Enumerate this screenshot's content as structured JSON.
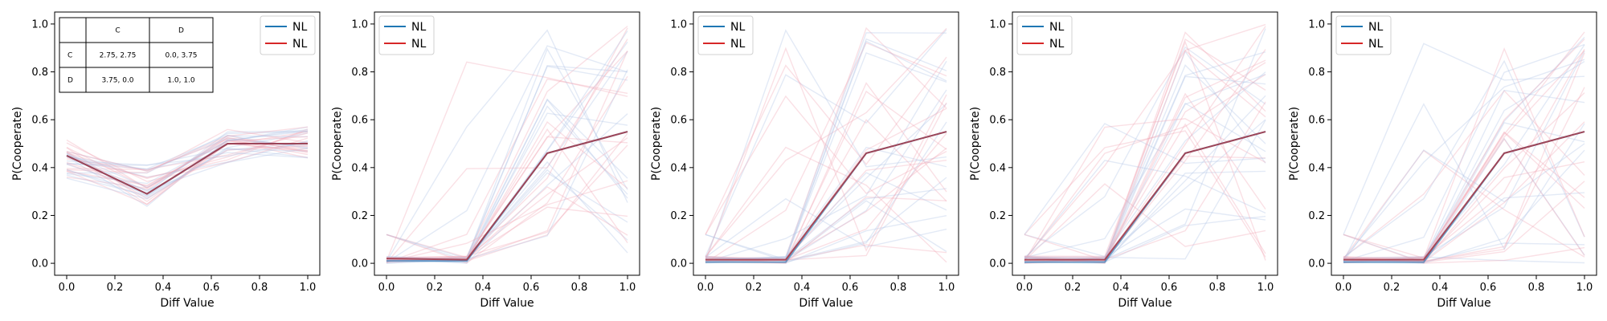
{
  "colors": {
    "series_a": "#1f77b4",
    "series_b": "#d62728",
    "overlap": "#a23b4b",
    "bg_a": "#aec3e6",
    "bg_b": "#f2a7b4"
  },
  "chart_data": [
    {
      "type": "line",
      "xlabel": "Diff Value",
      "ylabel": "P(Cooperate)",
      "xlim": [
        -0.05,
        1.05
      ],
      "ylim": [
        -0.05,
        1.05
      ],
      "xticks": [
        "0.0",
        "0.2",
        "0.4",
        "0.6",
        "0.8",
        "1.0"
      ],
      "yticks": [
        "0.0",
        "0.2",
        "0.4",
        "0.6",
        "0.8",
        "1.0"
      ],
      "legend_position": "top-right",
      "series": [
        {
          "name": "NL",
          "color_key": "series_a",
          "x": [
            0,
            0.333,
            0.667,
            1.0
          ],
          "values": [
            0.45,
            0.29,
            0.5,
            0.5
          ]
        },
        {
          "name": "NL",
          "color_key": "series_b",
          "x": [
            0,
            0.333,
            0.667,
            1.0
          ],
          "values": [
            0.45,
            0.29,
            0.5,
            0.5
          ]
        }
      ],
      "payoff_table": {
        "col_headers": [
          "",
          "C",
          "D"
        ],
        "rows": [
          [
            "C",
            "2.75, 2.75",
            "0.0, 3.75"
          ],
          [
            "D",
            "3.75, 0.0",
            "1.0, 1.0"
          ]
        ]
      }
    },
    {
      "type": "line",
      "xlabel": "Diff Value",
      "ylabel": "P(Cooperate)",
      "xlim": [
        -0.05,
        1.05
      ],
      "ylim": [
        -0.05,
        1.05
      ],
      "xticks": [
        "0.0",
        "0.2",
        "0.4",
        "0.6",
        "0.8",
        "1.0"
      ],
      "yticks": [
        "0.0",
        "0.2",
        "0.4",
        "0.6",
        "0.8",
        "1.0"
      ],
      "legend_position": "top-left",
      "series": [
        {
          "name": "NL",
          "color_key": "series_a",
          "x": [
            0,
            0.333,
            0.667,
            1.0
          ],
          "values": [
            0.01,
            0.01,
            0.46,
            0.55
          ]
        },
        {
          "name": "NL",
          "color_key": "series_b",
          "x": [
            0,
            0.333,
            0.667,
            1.0
          ],
          "values": [
            0.02,
            0.015,
            0.46,
            0.55
          ]
        }
      ]
    },
    {
      "type": "line",
      "xlabel": "Diff Value",
      "ylabel": "P(Cooperate)",
      "xlim": [
        -0.05,
        1.05
      ],
      "ylim": [
        -0.05,
        1.05
      ],
      "xticks": [
        "0.0",
        "0.2",
        "0.4",
        "0.6",
        "0.8",
        "1.0"
      ],
      "yticks": [
        "0.0",
        "0.2",
        "0.4",
        "0.6",
        "0.8",
        "1.0"
      ],
      "legend_position": "top-left",
      "series": [
        {
          "name": "NL",
          "color_key": "series_a",
          "x": [
            0,
            0.333,
            0.667,
            1.0
          ],
          "values": [
            0.005,
            0.005,
            0.46,
            0.55
          ]
        },
        {
          "name": "NL",
          "color_key": "series_b",
          "x": [
            0,
            0.333,
            0.667,
            1.0
          ],
          "values": [
            0.015,
            0.015,
            0.46,
            0.55
          ]
        }
      ]
    },
    {
      "type": "line",
      "xlabel": "Diff Value",
      "ylabel": "P(Cooperate)",
      "xlim": [
        -0.05,
        1.05
      ],
      "ylim": [
        -0.05,
        1.05
      ],
      "xticks": [
        "0.0",
        "0.2",
        "0.4",
        "0.6",
        "0.8",
        "1.0"
      ],
      "yticks": [
        "0.0",
        "0.2",
        "0.4",
        "0.6",
        "0.8",
        "1.0"
      ],
      "legend_position": "top-left",
      "series": [
        {
          "name": "NL",
          "color_key": "series_a",
          "x": [
            0,
            0.333,
            0.667,
            1.0
          ],
          "values": [
            0.005,
            0.005,
            0.46,
            0.55
          ]
        },
        {
          "name": "NL",
          "color_key": "series_b",
          "x": [
            0,
            0.333,
            0.667,
            1.0
          ],
          "values": [
            0.015,
            0.015,
            0.46,
            0.55
          ]
        }
      ]
    },
    {
      "type": "line",
      "xlabel": "Diff Value",
      "ylabel": "P(Cooperate)",
      "xlim": [
        -0.05,
        1.05
      ],
      "ylim": [
        -0.05,
        1.05
      ],
      "xticks": [
        "0.0",
        "0.2",
        "0.4",
        "0.6",
        "0.8",
        "1.0"
      ],
      "yticks": [
        "0.0",
        "0.2",
        "0.4",
        "0.6",
        "0.8",
        "1.0"
      ],
      "legend_position": "top-left",
      "series": [
        {
          "name": "NL",
          "color_key": "series_a",
          "x": [
            0,
            0.333,
            0.667,
            1.0
          ],
          "values": [
            0.005,
            0.005,
            0.46,
            0.55
          ]
        },
        {
          "name": "NL",
          "color_key": "series_b",
          "x": [
            0,
            0.333,
            0.667,
            1.0
          ],
          "values": [
            0.015,
            0.015,
            0.46,
            0.55
          ]
        }
      ]
    }
  ]
}
